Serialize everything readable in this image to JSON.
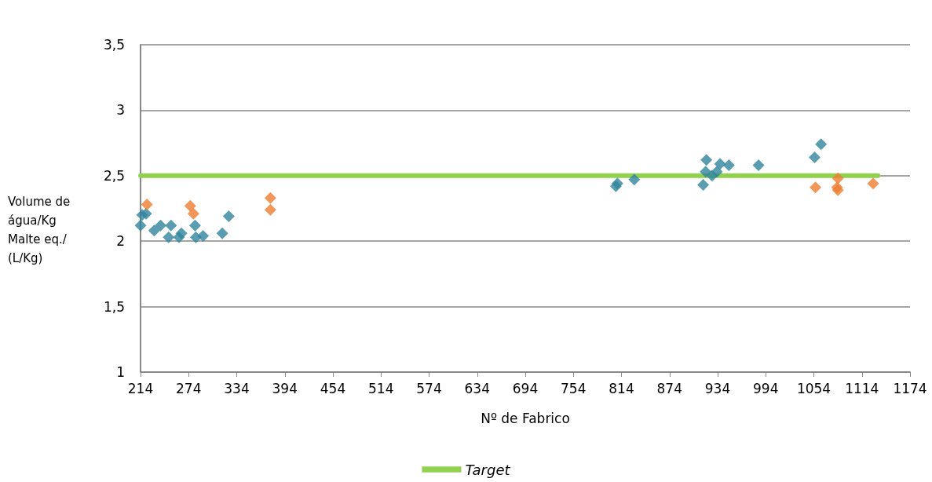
{
  "chart_data": {
    "type": "scatter",
    "xlabel": "Nº de Fabrico",
    "ylabel": "Volume de\nágua/Kg\nMalte eq./\n(L/Kg)",
    "xlim": [
      214,
      1174
    ],
    "xticks": [
      214,
      274,
      334,
      394,
      454,
      514,
      574,
      634,
      694,
      754,
      814,
      874,
      934,
      994,
      1054,
      1114,
      1174
    ],
    "ylim": [
      1,
      3.5
    ],
    "yticks": [
      1,
      {
        "value": 1.5,
        "label": "1,5"
      },
      2,
      {
        "value": 2.5,
        "label": "2,5"
      },
      3,
      {
        "value": 3.5,
        "label": "3,5"
      }
    ],
    "grid": "y",
    "legend": "bottom",
    "marker": "diamond",
    "series": [
      {
        "color": "#31859c",
        "x": [
          214,
          216,
          221,
          231,
          239,
          249,
          252,
          262,
          265,
          282,
          283,
          292,
          316,
          324,
          807,
          809,
          830,
          916,
          919,
          920,
          927,
          933,
          937,
          948,
          985,
          1055,
          1063
        ],
        "values": [
          2.12,
          2.2,
          2.21,
          2.08,
          2.12,
          2.03,
          2.12,
          2.03,
          2.06,
          2.12,
          2.03,
          2.04,
          2.06,
          2.19,
          2.42,
          2.44,
          2.47,
          2.43,
          2.53,
          2.62,
          2.5,
          2.53,
          2.59,
          2.58,
          2.58,
          2.64,
          2.74
        ]
      },
      {
        "color": "#ed7d31",
        "x": [
          222,
          276,
          280,
          376,
          376,
          1056,
          1084,
          1083,
          1084,
          1128
        ],
        "values": [
          2.28,
          2.27,
          2.21,
          2.33,
          2.24,
          2.41,
          2.48,
          2.41,
          2.39,
          2.44
        ]
      },
      {
        "name": "Target",
        "type": "line",
        "marker": "none",
        "color": "#92d050",
        "x": [
          214,
          1134
        ],
        "values": [
          2.5,
          2.5
        ]
      }
    ]
  }
}
